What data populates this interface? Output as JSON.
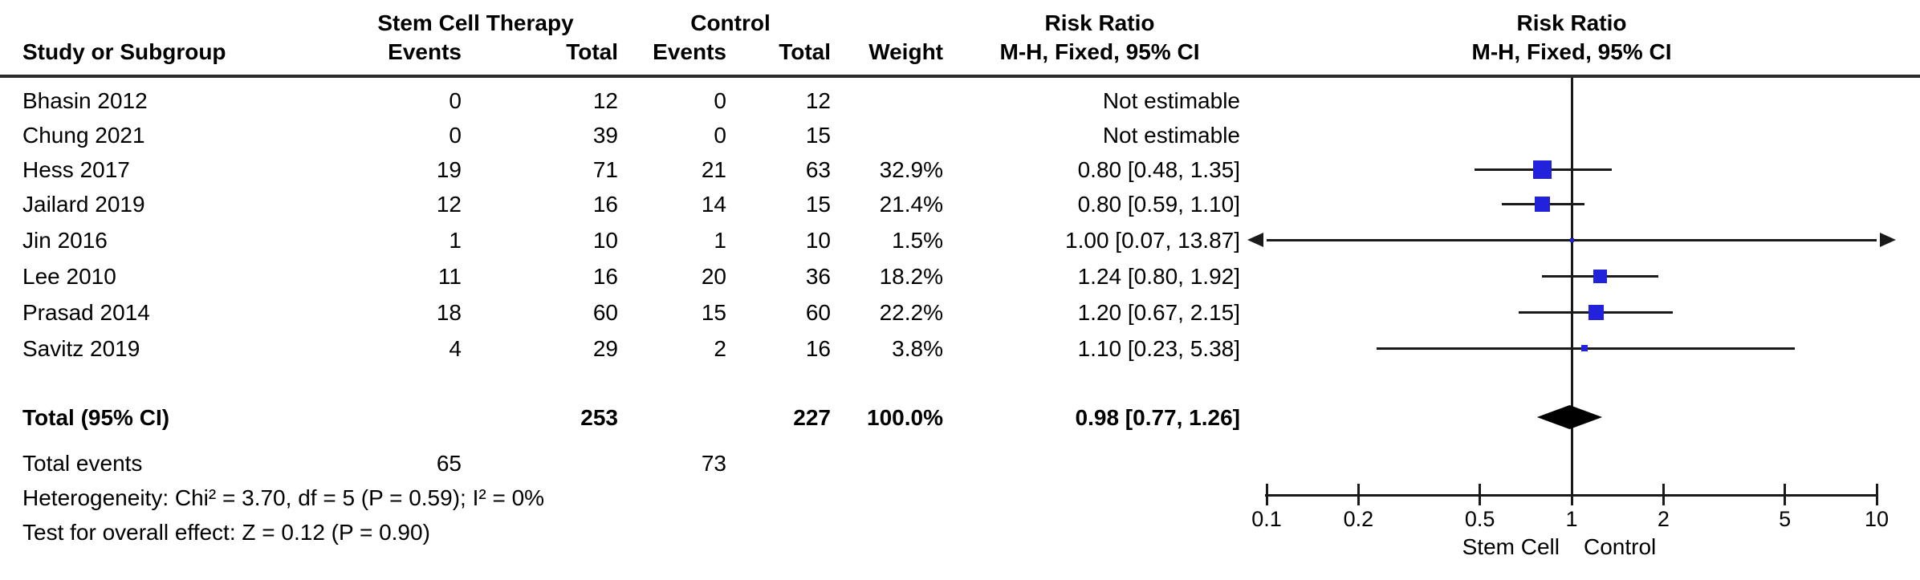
{
  "header": {
    "study": "Study or Subgroup",
    "group1": "Stem Cell Therapy",
    "group2": "Control",
    "events": "Events",
    "total": "Total",
    "weight": "Weight",
    "effect": "Risk Ratio",
    "method": "M-H, Fixed, 95% CI"
  },
  "rows": [
    {
      "study": "Bhasin 2012",
      "e1": "0",
      "t1": "12",
      "e2": "0",
      "t2": "12",
      "weight": "",
      "ci": "Not estimable"
    },
    {
      "study": "Chung 2021",
      "e1": "0",
      "t1": "39",
      "e2": "0",
      "t2": "15",
      "weight": "",
      "ci": "Not estimable"
    },
    {
      "study": "Hess 2017",
      "e1": "19",
      "t1": "71",
      "e2": "21",
      "t2": "63",
      "weight": "32.9%",
      "ci": "0.80 [0.48, 1.35]"
    },
    {
      "study": "Jailard 2019",
      "e1": "12",
      "t1": "16",
      "e2": "14",
      "t2": "15",
      "weight": "21.4%",
      "ci": "0.80 [0.59, 1.10]"
    },
    {
      "study": "Jin 2016",
      "e1": "1",
      "t1": "10",
      "e2": "1",
      "t2": "10",
      "weight": "1.5%",
      "ci": "1.00 [0.07, 13.87]"
    },
    {
      "study": "Lee 2010",
      "e1": "11",
      "t1": "16",
      "e2": "20",
      "t2": "36",
      "weight": "18.2%",
      "ci": "1.24 [0.80, 1.92]"
    },
    {
      "study": "Prasad 2014",
      "e1": "18",
      "t1": "60",
      "e2": "15",
      "t2": "60",
      "weight": "22.2%",
      "ci": "1.20 [0.67, 2.15]"
    },
    {
      "study": "Savitz 2019",
      "e1": "4",
      "t1": "29",
      "e2": "2",
      "t2": "16",
      "weight": "3.8%",
      "ci": "1.10 [0.23, 5.38]"
    }
  ],
  "total_row": {
    "label": "Total (95% CI)",
    "t1": "253",
    "t2": "227",
    "weight": "100.0%",
    "ci": "0.98 [0.77, 1.26]"
  },
  "total_events": {
    "label": "Total events",
    "e1": "65",
    "e2": "73"
  },
  "stats": {
    "heterogeneity": "Heterogeneity: Chi² = 3.70, df = 5 (P = 0.59); I² = 0%",
    "overall_effect": "Test for overall effect: Z = 0.12 (P = 0.90)"
  },
  "axis": {
    "tick_labels": [
      "0.1",
      "0.2",
      "0.5",
      "1",
      "2",
      "5",
      "10"
    ],
    "favours_left": "Stem Cell",
    "favours_right": "Control"
  },
  "colors": {
    "marker_blue": "#2222dd",
    "diamond_black": "#000000",
    "line_black": "#1a1a1a",
    "separator_gray": "#2b2b2b"
  },
  "chart_data": {
    "type": "scatter",
    "subtype": "forest-plot",
    "title": "Risk Ratio",
    "effect_measure": "M-H, Fixed, 95% CI",
    "x_scale": "log",
    "xlim": [
      0.1,
      10
    ],
    "x_ticks": [
      0.1,
      0.2,
      0.5,
      1,
      2,
      5,
      10
    ],
    "x_axis_labels": {
      "left": "Stem Cell",
      "right": "Control"
    },
    "studies": [
      {
        "name": "Bhasin 2012",
        "rr": null,
        "ci_low": null,
        "ci_high": null,
        "weight_pct": null,
        "not_estimable": true
      },
      {
        "name": "Chung 2021",
        "rr": null,
        "ci_low": null,
        "ci_high": null,
        "weight_pct": null,
        "not_estimable": true
      },
      {
        "name": "Hess 2017",
        "rr": 0.8,
        "ci_low": 0.48,
        "ci_high": 1.35,
        "weight_pct": 32.9,
        "not_estimable": false
      },
      {
        "name": "Jailard 2019",
        "rr": 0.8,
        "ci_low": 0.59,
        "ci_high": 1.1,
        "weight_pct": 21.4,
        "not_estimable": false
      },
      {
        "name": "Jin 2016",
        "rr": 1.0,
        "ci_low": 0.07,
        "ci_high": 13.87,
        "weight_pct": 1.5,
        "not_estimable": false
      },
      {
        "name": "Lee 2010",
        "rr": 1.24,
        "ci_low": 0.8,
        "ci_high": 1.92,
        "weight_pct": 18.2,
        "not_estimable": false
      },
      {
        "name": "Prasad 2014",
        "rr": 1.2,
        "ci_low": 0.67,
        "ci_high": 2.15,
        "weight_pct": 22.2,
        "not_estimable": false
      },
      {
        "name": "Savitz 2019",
        "rr": 1.1,
        "ci_low": 0.23,
        "ci_high": 5.38,
        "weight_pct": 3.8,
        "not_estimable": false
      }
    ],
    "total": {
      "name": "Total (95% CI)",
      "rr": 0.98,
      "ci_low": 0.77,
      "ci_high": 1.26,
      "weight_pct": 100.0,
      "events_treatment": 65,
      "total_treatment": 253,
      "events_control": 73,
      "total_control": 227
    },
    "heterogeneity": {
      "chi2": 3.7,
      "df": 5,
      "p": 0.59,
      "i2_pct": 0
    },
    "overall_effect": {
      "z": 0.12,
      "p": 0.9
    }
  }
}
